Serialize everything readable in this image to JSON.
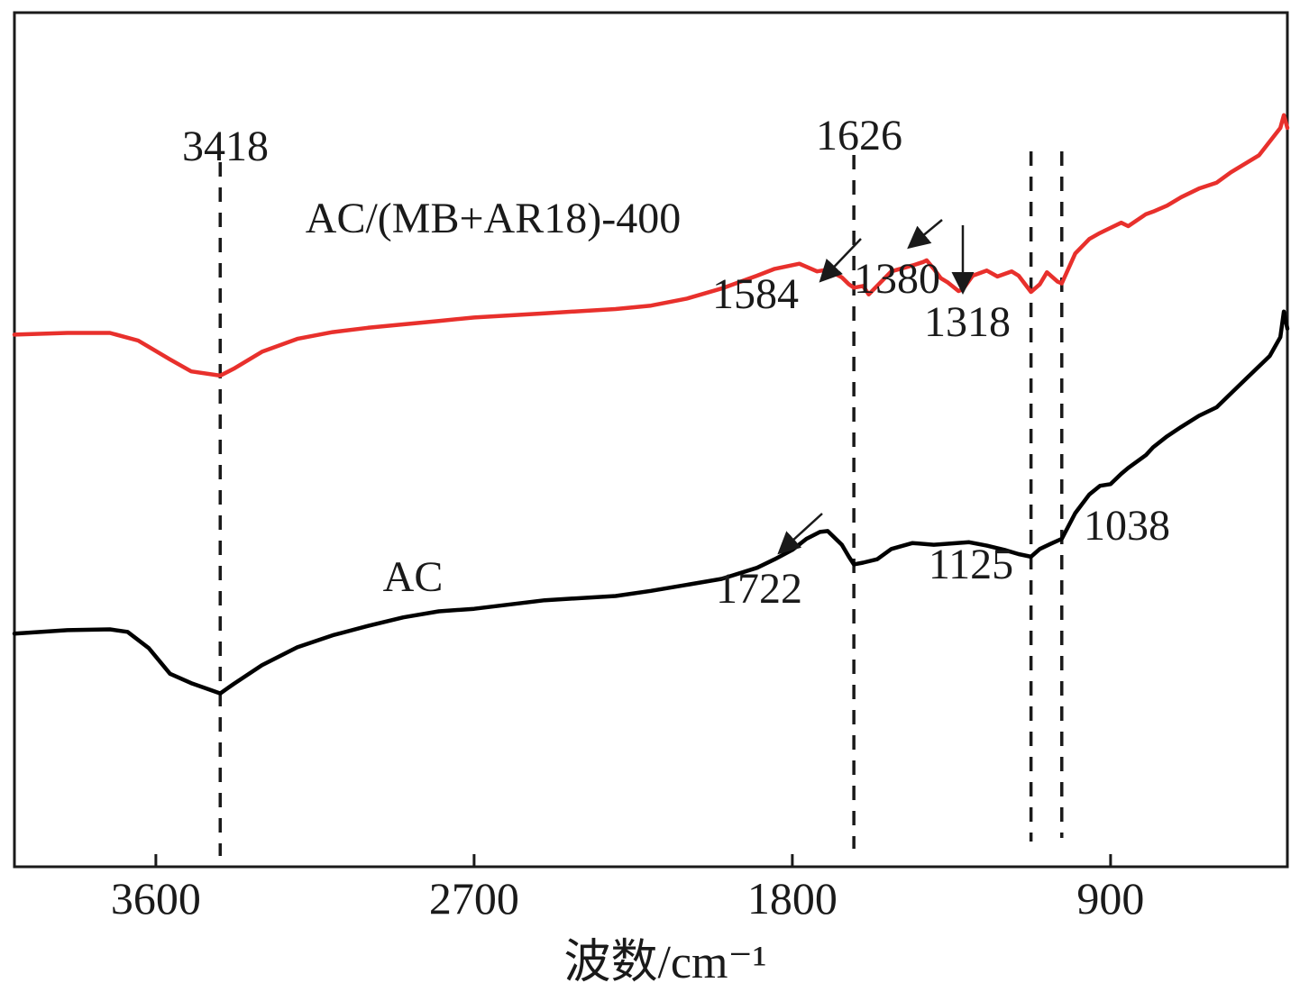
{
  "chart_data": {
    "type": "line",
    "title": "",
    "xlabel": "波数/cm⁻¹",
    "ylabel": "",
    "x_reversed": true,
    "xlim": [
      4000,
      400
    ],
    "x_ticks": [
      3600,
      2700,
      1800,
      900
    ],
    "y_axis_visible": false,
    "grid": false,
    "colors": {
      "AC": "#000000",
      "AC/(MB+AR18)-400": "#e8302c"
    },
    "series": [
      {
        "name": "AC/(MB+AR18)-400",
        "x": [
          4000,
          3850,
          3730,
          3650,
          3560,
          3500,
          3418,
          3380,
          3300,
          3200,
          3100,
          3000,
          2900,
          2800,
          2700,
          2500,
          2300,
          2200,
          2100,
          2000,
          1900,
          1850,
          1780,
          1730,
          1700,
          1660,
          1640,
          1626,
          1600,
          1584,
          1520,
          1460,
          1430,
          1420,
          1400,
          1380,
          1360,
          1330,
          1318,
          1290,
          1250,
          1220,
          1180,
          1160,
          1125,
          1100,
          1080,
          1050,
          1038,
          1000,
          960,
          930,
          900,
          870,
          850,
          800,
          780,
          740,
          700,
          650,
          600,
          560,
          520,
          480,
          450,
          420,
          410,
          400
        ],
        "y": [
          62.3,
          62.5,
          62.5,
          61.6,
          59.4,
          58.0,
          57.5,
          58.3,
          60.3,
          61.8,
          62.6,
          63.1,
          63.5,
          63.9,
          64.3,
          64.8,
          65.3,
          65.7,
          66.5,
          67.7,
          69.2,
          70.0,
          70.6,
          69.7,
          69.9,
          69.0,
          68.2,
          67.8,
          68.0,
          67.0,
          69.7,
          70.4,
          70.8,
          71.0,
          70.0,
          68.9,
          68.4,
          67.4,
          67.6,
          69.2,
          69.8,
          69.1,
          69.7,
          69.2,
          67.3,
          68.2,
          69.6,
          68.5,
          68.3,
          71.8,
          73.5,
          74.2,
          74.8,
          75.4,
          75.0,
          76.4,
          76.7,
          77.4,
          78.4,
          79.4,
          80.1,
          81.3,
          82.3,
          83.3,
          84.9,
          86.5,
          88.0,
          86.5
        ]
      },
      {
        "name": "AC",
        "x": [
          4000,
          3850,
          3730,
          3680,
          3620,
          3560,
          3500,
          3418,
          3380,
          3300,
          3200,
          3100,
          3000,
          2900,
          2800,
          2700,
          2500,
          2300,
          2200,
          2100,
          2000,
          1900,
          1850,
          1800,
          1760,
          1722,
          1700,
          1660,
          1640,
          1626,
          1600,
          1560,
          1520,
          1460,
          1400,
          1300,
          1250,
          1200,
          1160,
          1125,
          1100,
          1070,
          1038,
          1000,
          960,
          930,
          900,
          870,
          850,
          800,
          780,
          740,
          700,
          650,
          600,
          560,
          520,
          480,
          450,
          420,
          410,
          400
        ],
        "y": [
          27.3,
          27.7,
          27.8,
          27.5,
          25.6,
          22.6,
          21.5,
          20.3,
          21.4,
          23.6,
          25.7,
          27.1,
          28.2,
          29.2,
          29.9,
          30.2,
          31.2,
          31.7,
          32.3,
          33.0,
          33.7,
          35.0,
          36.0,
          37.1,
          38.4,
          39.2,
          39.3,
          37.7,
          36.3,
          35.4,
          35.6,
          36.0,
          37.2,
          37.9,
          37.7,
          38.0,
          37.6,
          37.1,
          36.6,
          36.3,
          37.2,
          37.8,
          38.4,
          41.4,
          43.6,
          44.6,
          44.8,
          46.0,
          46.7,
          48.2,
          49.1,
          50.4,
          51.5,
          52.8,
          53.8,
          55.4,
          57.0,
          58.6,
          59.8,
          62.0,
          65.0,
          63.0
        ]
      }
    ],
    "annotations": {
      "peak_3418": "3418",
      "peak_1626": "1626",
      "peak_1584": "1584",
      "peak_1380": "1380",
      "peak_1318": "1318",
      "peak_1722": "1722",
      "peak_1125": "1125",
      "peak_1038": "1038",
      "label_ac": "AC",
      "label_modified": "AC/(MB+AR18)-400"
    }
  }
}
